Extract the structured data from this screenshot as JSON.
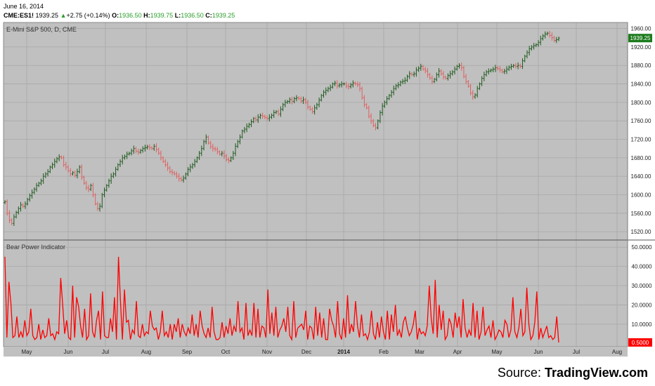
{
  "header": {
    "date": "June 16, 2014",
    "symbol": "CME:ES1!",
    "last": "1939.25",
    "change_arrow": "▲",
    "change": "+2.75 (+0.14%)",
    "open_label": "O:",
    "open": "1936.50",
    "high_label": "H:",
    "high": "1939.75",
    "low_label": "L:",
    "low": "1936.50",
    "close_label": "C:",
    "close": "1939.25"
  },
  "colors": {
    "plot_bg": "#c0c0c0",
    "grid": "#a8a8a8",
    "up_bar": "#1e5a1e",
    "down_bar": "#e06060",
    "bear_line": "#ff0000",
    "last_price_bg": "#1a7a1a",
    "last_bear_bg": "#ff0000"
  },
  "source": {
    "prefix": "Source: ",
    "brand": "TradingView.com"
  },
  "chart_data": [
    {
      "type": "ohlc",
      "title": "E-Mini S&P 500, D, CME",
      "y_ticks": [
        1520,
        1560,
        1600,
        1640,
        1680,
        1720,
        1760,
        1800,
        1840,
        1880,
        1920,
        1960
      ],
      "ylim": [
        1505,
        1970
      ],
      "last_price_label": "1939.25",
      "grid": true,
      "x_ticks": [
        "May",
        "Jun",
        "Jul",
        "Aug",
        "Sep",
        "Oct",
        "Nov",
        "Dec",
        "2014",
        "Feb",
        "Mar",
        "Apr",
        "May",
        "Jun",
        "Jul",
        "Aug"
      ],
      "closes": [
        1585,
        1560,
        1545,
        1538,
        1552,
        1562,
        1570,
        1578,
        1575,
        1580,
        1590,
        1598,
        1605,
        1612,
        1620,
        1625,
        1630,
        1640,
        1645,
        1650,
        1660,
        1665,
        1672,
        1678,
        1682,
        1680,
        1665,
        1660,
        1652,
        1645,
        1648,
        1642,
        1650,
        1660,
        1638,
        1625,
        1615,
        1612,
        1620,
        1600,
        1580,
        1570,
        1575,
        1600,
        1610,
        1620,
        1630,
        1640,
        1645,
        1655,
        1665,
        1672,
        1680,
        1683,
        1688,
        1690,
        1695,
        1700,
        1694,
        1692,
        1696,
        1700,
        1702,
        1704,
        1702,
        1700,
        1705,
        1698,
        1690,
        1680,
        1672,
        1665,
        1658,
        1650,
        1648,
        1645,
        1640,
        1635,
        1632,
        1636,
        1645,
        1655,
        1660,
        1665,
        1672,
        1680,
        1690,
        1700,
        1715,
        1725,
        1712,
        1704,
        1700,
        1698,
        1693,
        1688,
        1690,
        1684,
        1676,
        1674,
        1680,
        1690,
        1705,
        1715,
        1725,
        1738,
        1742,
        1748,
        1752,
        1758,
        1765,
        1762,
        1768,
        1772,
        1770,
        1767,
        1765,
        1768,
        1772,
        1778,
        1780,
        1775,
        1785,
        1795,
        1800,
        1802,
        1806,
        1802,
        1808,
        1810,
        1808,
        1803,
        1806,
        1800,
        1790,
        1785,
        1780,
        1788,
        1795,
        1805,
        1815,
        1822,
        1826,
        1830,
        1833,
        1840,
        1842,
        1836,
        1838,
        1840,
        1840,
        1835,
        1834,
        1838,
        1842,
        1840,
        1838,
        1830,
        1810,
        1795,
        1788,
        1770,
        1760,
        1750,
        1745,
        1760,
        1778,
        1792,
        1800,
        1808,
        1815,
        1822,
        1830,
        1836,
        1838,
        1844,
        1846,
        1848,
        1856,
        1862,
        1860,
        1862,
        1870,
        1874,
        1878,
        1872,
        1868,
        1860,
        1853,
        1845,
        1850,
        1860,
        1868,
        1862,
        1855,
        1852,
        1858,
        1862,
        1866,
        1872,
        1878,
        1880,
        1875,
        1856,
        1845,
        1835,
        1820,
        1812,
        1816,
        1830,
        1840,
        1852,
        1860,
        1866,
        1868,
        1870,
        1872,
        1875,
        1873,
        1870,
        1866,
        1868,
        1872,
        1876,
        1878,
        1880,
        1878,
        1880,
        1878,
        1890,
        1900,
        1908,
        1916,
        1920,
        1923,
        1925,
        1930,
        1938,
        1944,
        1948,
        1950,
        1945,
        1940,
        1934,
        1936,
        1939.25
      ],
      "label_last": "1939.25"
    },
    {
      "type": "line",
      "title": "Bear Power Indicator",
      "y_ticks": [
        10,
        20,
        30,
        40,
        50
      ],
      "y_tick_labels": [
        "10.0000",
        "20.0000",
        "30.0000",
        "40.0000",
        "50.0000"
      ],
      "ylim": [
        -1,
        53
      ],
      "last_value_label": "0.5000",
      "values": [
        45,
        3,
        32,
        21,
        3,
        4,
        14,
        3,
        6,
        3,
        12,
        4,
        6,
        18,
        4,
        2,
        3,
        10,
        2,
        7,
        3,
        4,
        13,
        4,
        5,
        2,
        6,
        5,
        34,
        20,
        5,
        12,
        3,
        2,
        30,
        3,
        24,
        19,
        9,
        3,
        18,
        2,
        4,
        26,
        6,
        3,
        12,
        17,
        2,
        27,
        4,
        3,
        3,
        13,
        6,
        24,
        2,
        45,
        22,
        2,
        28,
        11,
        12,
        2,
        7,
        5,
        22,
        4,
        3,
        10,
        4,
        6,
        5,
        17,
        9,
        7,
        8,
        2,
        6,
        17,
        4,
        6,
        3,
        10,
        2,
        10,
        6,
        13,
        3,
        10,
        6,
        4,
        8,
        5,
        15,
        4,
        10,
        3,
        17,
        9,
        5,
        3,
        8,
        3,
        19,
        6,
        2,
        2,
        3,
        11,
        3,
        9,
        5,
        13,
        4,
        9,
        6,
        22,
        6,
        8,
        2,
        21,
        4,
        7,
        4,
        21,
        3,
        18,
        3,
        9,
        8,
        3,
        28,
        5,
        16,
        4,
        19,
        3,
        7,
        9,
        13,
        6,
        19,
        4,
        2,
        22,
        3,
        8,
        9,
        10,
        7,
        17,
        2,
        9,
        8,
        2,
        19,
        4,
        16,
        3,
        13,
        2,
        2,
        18,
        12,
        9,
        3,
        22,
        5,
        2,
        13,
        3,
        25,
        5,
        10,
        6,
        22,
        9,
        3,
        15,
        4,
        5,
        2,
        6,
        17,
        5,
        2,
        11,
        3,
        14,
        6,
        2,
        17,
        2,
        15,
        6,
        20,
        4,
        7,
        3,
        11,
        14,
        8,
        4,
        6,
        10,
        17,
        2,
        8,
        5,
        6,
        4,
        9,
        30,
        13,
        5,
        33,
        3,
        20,
        7,
        17,
        2,
        4,
        13,
        10,
        3,
        16,
        8,
        14,
        3,
        23,
        8,
        3,
        7,
        4,
        21,
        3,
        17,
        2,
        6,
        19,
        4,
        7,
        9,
        3,
        12,
        2,
        4,
        7,
        6,
        3,
        12,
        10,
        3,
        7,
        24,
        6,
        3,
        8,
        18,
        4,
        6,
        29,
        10,
        2,
        4,
        11,
        27,
        2,
        8,
        3,
        6,
        9,
        3,
        4,
        2,
        3,
        14,
        0.5
      ],
      "x_ticks": [
        "May",
        "Jun",
        "Jul",
        "Aug",
        "Sep",
        "Oct",
        "Nov",
        "Dec",
        "2014",
        "Feb",
        "Mar",
        "Apr",
        "May",
        "Jun",
        "Jul",
        "Aug"
      ],
      "grid": true
    }
  ]
}
